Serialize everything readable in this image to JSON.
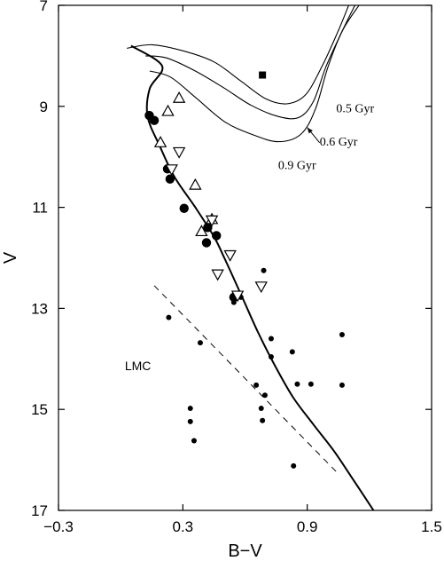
{
  "chart_data": {
    "type": "scatter",
    "title": "",
    "xlabel": "B−V",
    "ylabel": "V",
    "xlim": [
      -0.3,
      1.5
    ],
    "ylim": [
      17,
      7
    ],
    "y_inverted": true,
    "x_ticks": [
      -0.3,
      0.3,
      0.9,
      1.5
    ],
    "x_tick_labels": [
      "−0.3",
      "0.3",
      "0.9",
      "1.5"
    ],
    "y_ticks": [
      7,
      9,
      11,
      13,
      15,
      17
    ],
    "y_tick_labels": [
      "7",
      "9",
      "11",
      "13",
      "15",
      "17"
    ],
    "series": [
      {
        "marker": "filled-circle-large",
        "points": [
          [
            0.138,
            9.18
          ],
          [
            0.162,
            9.28
          ],
          [
            0.226,
            10.24
          ],
          [
            0.238,
            10.44
          ],
          [
            0.306,
            11.02
          ],
          [
            0.42,
            11.4
          ],
          [
            0.462,
            11.56
          ],
          [
            0.414,
            11.7
          ],
          [
            0.546,
            12.78
          ]
        ]
      },
      {
        "marker": "filled-circle-small",
        "points": [
          [
            0.232,
            13.18
          ],
          [
            0.384,
            13.68
          ],
          [
            0.546,
            12.88
          ],
          [
            0.58,
            12.78
          ],
          [
            0.69,
            12.25
          ],
          [
            0.726,
            13.6
          ],
          [
            0.726,
            13.96
          ],
          [
            0.654,
            14.52
          ],
          [
            0.696,
            14.72
          ],
          [
            0.678,
            14.98
          ],
          [
            0.684,
            15.22
          ],
          [
            0.828,
            13.86
          ],
          [
            0.852,
            14.5
          ],
          [
            0.918,
            14.5
          ],
          [
            1.068,
            13.52
          ],
          [
            1.068,
            14.52
          ],
          [
            0.336,
            14.98
          ],
          [
            0.336,
            15.24
          ],
          [
            0.354,
            15.62
          ],
          [
            0.834,
            16.12
          ]
        ]
      },
      {
        "marker": "open-triangle-up",
        "points": [
          [
            0.282,
            8.84
          ],
          [
            0.228,
            9.1
          ],
          [
            0.192,
            9.72
          ],
          [
            0.36,
            10.56
          ],
          [
            0.44,
            11.24
          ],
          [
            0.39,
            11.48
          ]
        ]
      },
      {
        "marker": "open-triangle-down",
        "points": [
          [
            0.282,
            9.9
          ],
          [
            0.246,
            10.24
          ],
          [
            0.44,
            11.25
          ],
          [
            0.528,
            11.94
          ],
          [
            0.468,
            12.32
          ],
          [
            0.564,
            12.74
          ],
          [
            0.678,
            12.56
          ]
        ]
      },
      {
        "marker": "filled-square",
        "points": [
          [
            0.684,
            8.38
          ]
        ]
      }
    ],
    "isochrones": [
      {
        "name": "0.5 Gyr",
        "points": [
          [
            0.03,
            7.85
          ],
          [
            0.15,
            7.78
          ],
          [
            0.3,
            7.9
          ],
          [
            0.45,
            8.12
          ],
          [
            0.58,
            8.5
          ],
          [
            0.7,
            8.85
          ],
          [
            0.8,
            8.95
          ],
          [
            0.89,
            8.78
          ],
          [
            0.97,
            8.22
          ],
          [
            1.05,
            7.5
          ],
          [
            1.1,
            7.0
          ]
        ]
      },
      {
        "name": "0.6 Gyr",
        "points": [
          [
            0.12,
            8.0
          ],
          [
            0.22,
            8.04
          ],
          [
            0.36,
            8.3
          ],
          [
            0.5,
            8.64
          ],
          [
            0.63,
            8.98
          ],
          [
            0.76,
            9.2
          ],
          [
            0.86,
            9.22
          ],
          [
            0.93,
            8.9
          ],
          [
            0.99,
            8.22
          ],
          [
            1.07,
            7.5
          ],
          [
            1.13,
            7.0
          ]
        ]
      },
      {
        "name": "0.9 Gyr",
        "points": [
          [
            0.14,
            8.3
          ],
          [
            0.24,
            8.42
          ],
          [
            0.36,
            8.82
          ],
          [
            0.5,
            9.3
          ],
          [
            0.63,
            9.55
          ],
          [
            0.76,
            9.7
          ],
          [
            0.87,
            9.55
          ],
          [
            0.94,
            9.05
          ],
          [
            1.0,
            8.22
          ],
          [
            1.07,
            7.5
          ],
          [
            1.15,
            7.0
          ]
        ]
      }
    ],
    "main_sequence": {
      "points": [
        [
          0.05,
          7.8
        ],
        [
          0.2,
          8.2
        ],
        [
          0.14,
          8.65
        ],
        [
          0.13,
          9.2
        ],
        [
          0.19,
          9.8
        ],
        [
          0.26,
          10.4
        ],
        [
          0.36,
          11.0
        ],
        [
          0.45,
          11.58
        ],
        [
          0.5,
          12.0
        ],
        [
          0.58,
          12.72
        ],
        [
          0.66,
          13.45
        ],
        [
          0.74,
          14.1
        ],
        [
          0.83,
          14.75
        ],
        [
          0.93,
          15.3
        ],
        [
          1.03,
          15.83
        ],
        [
          1.12,
          16.38
        ],
        [
          1.22,
          17.0
        ]
      ]
    },
    "reference_line": {
      "style": "dashed",
      "points": [
        [
          0.162,
          12.55
        ],
        [
          1.044,
          16.25
        ]
      ]
    },
    "annotations": [
      {
        "text": "0.5 Gyr",
        "x": 1.04,
        "y": 9.12
      },
      {
        "text": "0.6 Gyr",
        "x": 0.96,
        "y": 9.78
      },
      {
        "text": "0.9 Gyr",
        "x": 0.76,
        "y": 10.24
      },
      {
        "text": "LMC",
        "x": 0.02,
        "y": 14.22
      }
    ],
    "arrow": {
      "from": [
        0.96,
        9.72
      ],
      "to": [
        0.9,
        9.42
      ]
    }
  }
}
